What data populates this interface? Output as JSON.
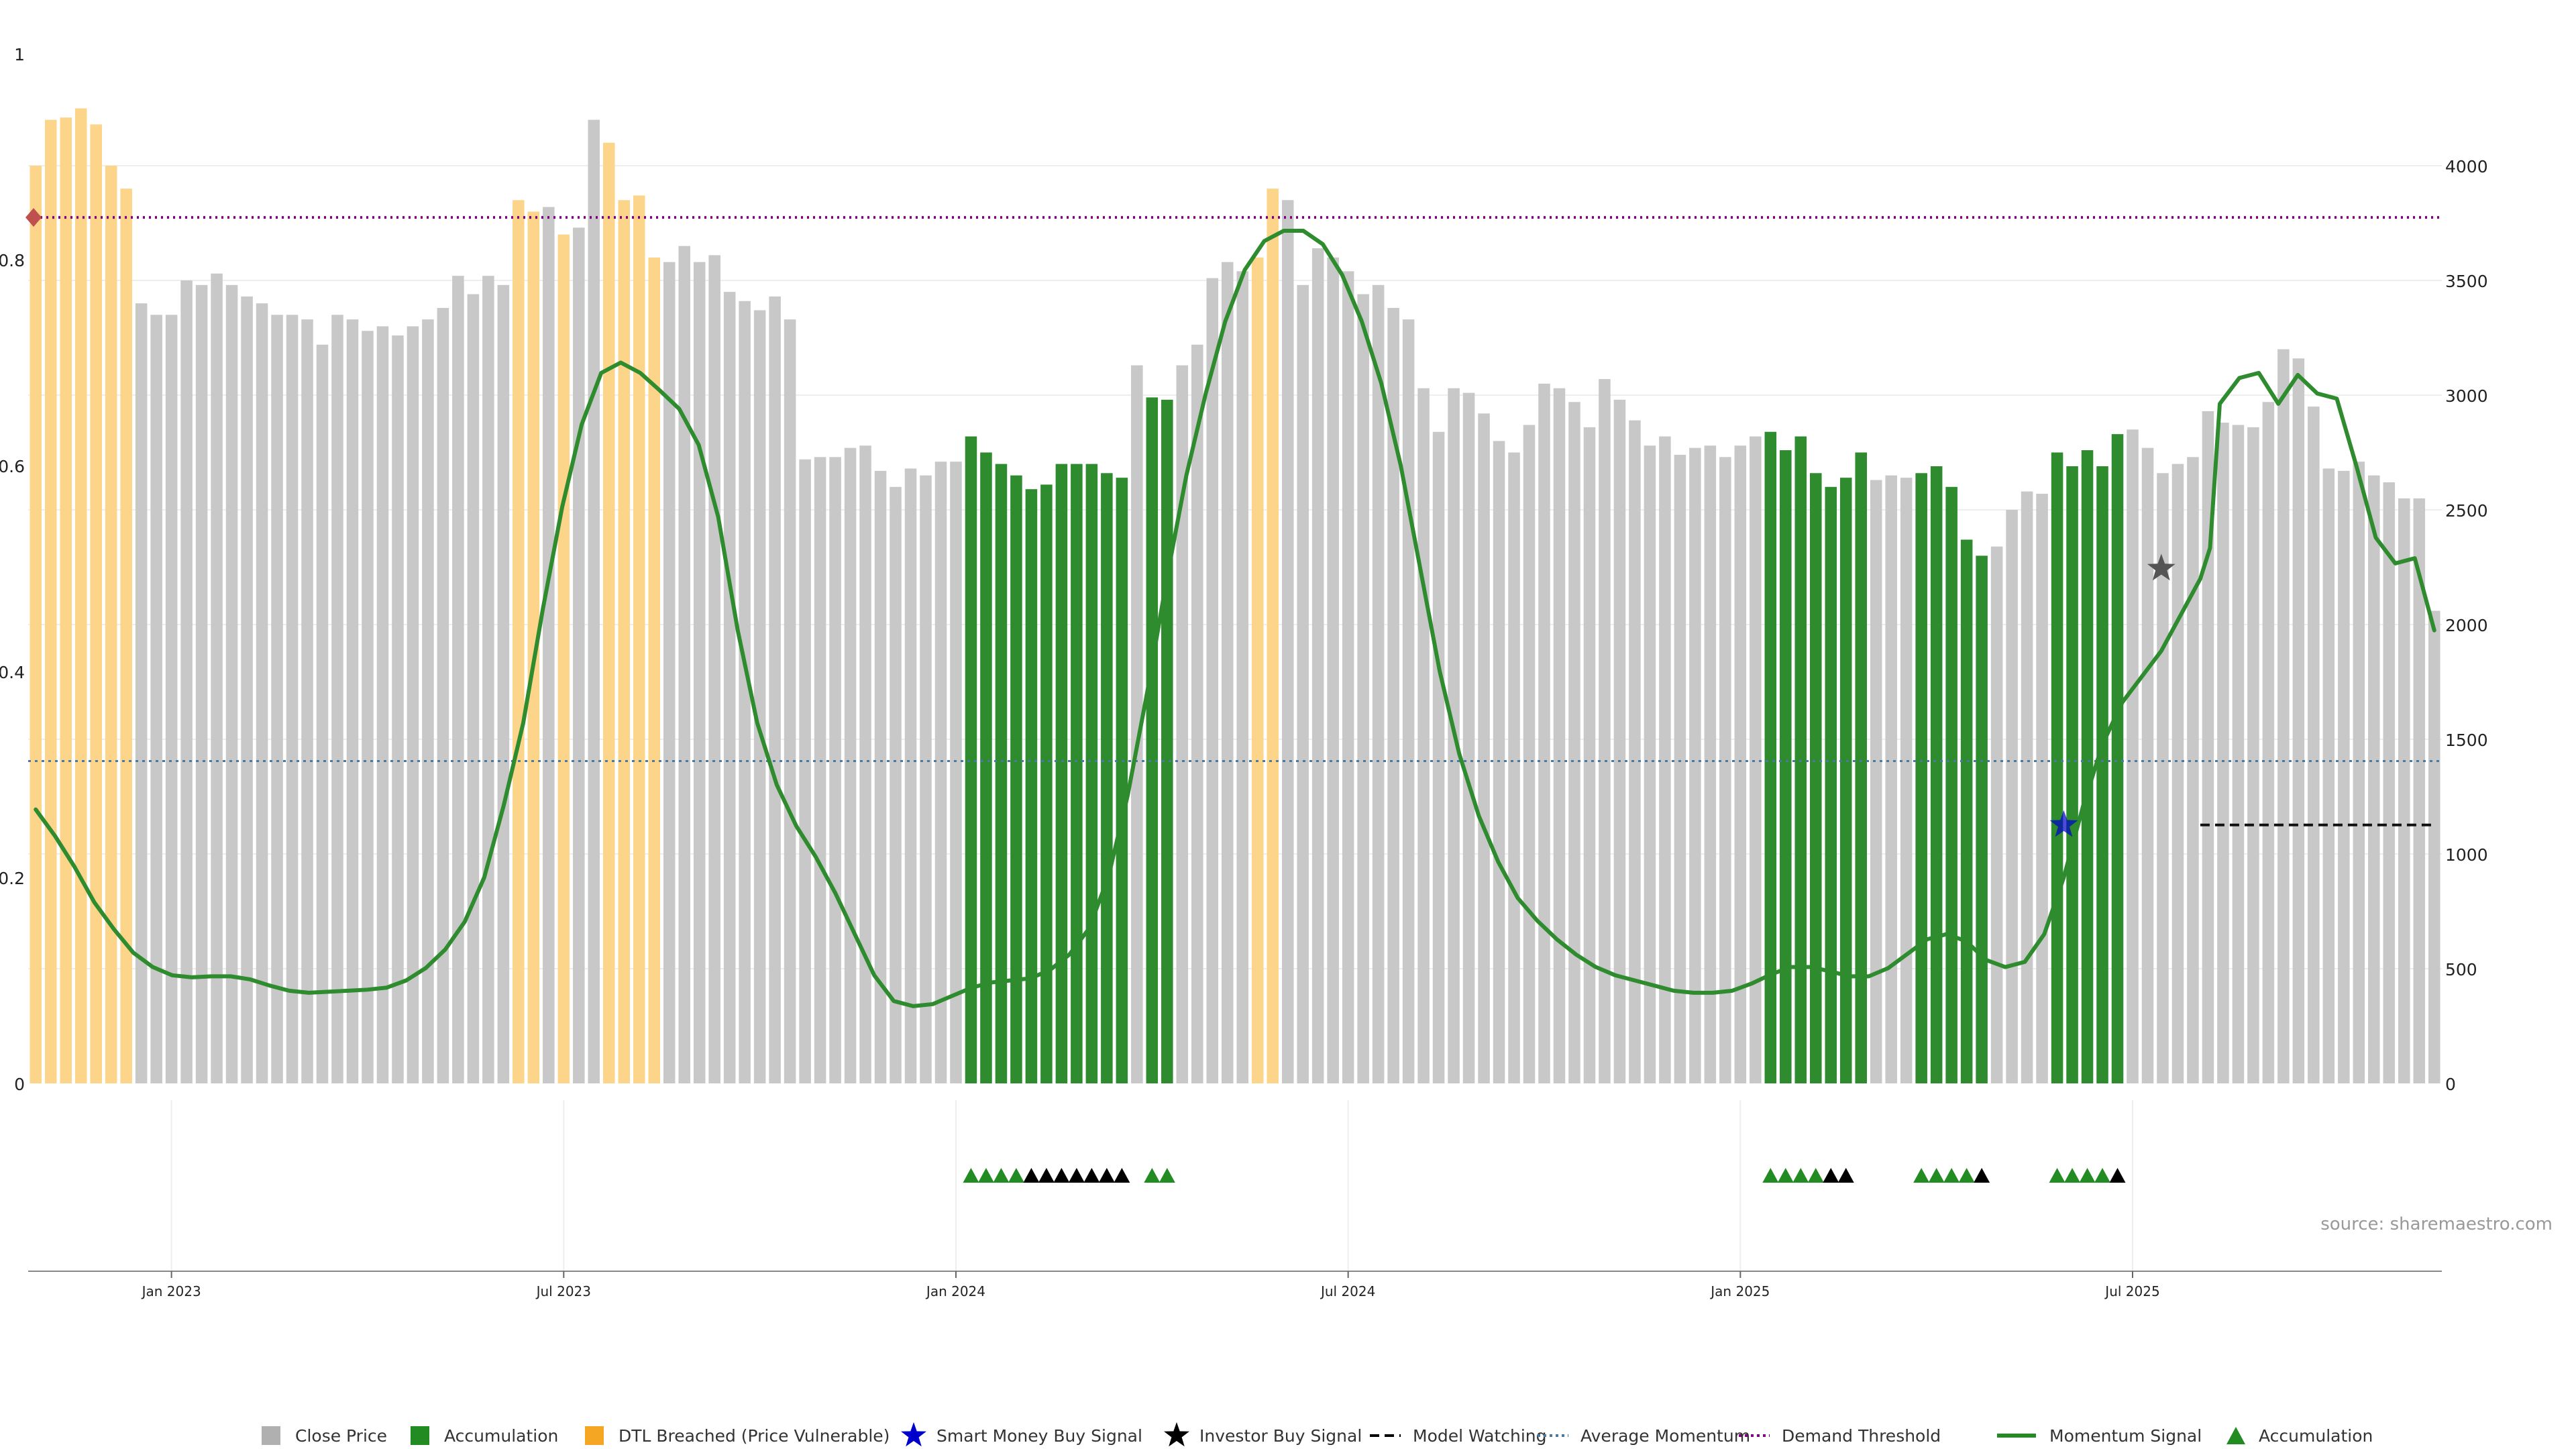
{
  "chart_data": {
    "type": "bar",
    "source": "source: sharemaestro.com",
    "left_axis": {
      "ticks": [
        "0",
        "0.2",
        "0.4",
        "0.6",
        "0.8",
        "1"
      ],
      "values": [
        0,
        0.2,
        0.4,
        0.6,
        0.8,
        1
      ]
    },
    "right_axis": {
      "ticks": [
        "0",
        "500",
        "1000",
        "1500",
        "2000",
        "2500",
        "3000",
        "3500",
        "4000"
      ],
      "values": [
        0,
        500,
        1000,
        1500,
        2000,
        2500,
        3000,
        3500,
        4000
      ]
    },
    "x_ticks": [
      "Jan 2023",
      "Jul 2023",
      "Jan 2024",
      "Jul 2024",
      "Jan 2025",
      "Jul 2025"
    ],
    "legend": [
      {
        "label": "Close Price",
        "kind": "square",
        "color": "#b0b0b0"
      },
      {
        "label": "Accumulation",
        "kind": "square",
        "color": "#228b22"
      },
      {
        "label": "DTL Breached (Price Vulnerable)",
        "kind": "square",
        "color": "#f5a623"
      },
      {
        "label": "Smart Money Buy Signal",
        "kind": "star",
        "color": "#0000cc"
      },
      {
        "label": "Investor Buy Signal",
        "kind": "star",
        "color": "#000000"
      },
      {
        "label": "Model Watching",
        "kind": "dash",
        "color": "#000000"
      },
      {
        "label": "Average Momentum",
        "kind": "dot",
        "color": "#4a7aa0"
      },
      {
        "label": "Demand Threshold",
        "kind": "dot",
        "color": "#800080"
      },
      {
        "label": "Momentum Signal",
        "kind": "line",
        "color": "#228b22"
      },
      {
        "label": "Accumulation",
        "kind": "triangle",
        "color": "#228b22"
      }
    ],
    "colors": {
      "close": "#c8c8c8",
      "accumulation": "#2e8b2e",
      "dtl": "#fcd58a",
      "momentum": "#2e8b2e",
      "demand": "#800080",
      "average": "#4a7aa0"
    },
    "demand_threshold": 0.841,
    "average_momentum": 0.313,
    "bars": {
      "close_prices": [
        4000,
        4200,
        4210,
        4250,
        4180,
        4000,
        3900,
        3400,
        3350,
        3350,
        3500,
        3480,
        3530,
        3480,
        3430,
        3400,
        3350,
        3350,
        3330,
        3220,
        3350,
        3330,
        3280,
        3300,
        3260,
        3300,
        3330,
        3380,
        3520,
        3440,
        3520,
        3480,
        3850,
        3800,
        3820,
        3700,
        3730,
        4200,
        4100,
        3850,
        3870,
        3600,
        3580,
        3650,
        3580,
        3610,
        3450,
        3410,
        3370,
        3430,
        3330,
        2720,
        2730,
        2730,
        2770,
        2780,
        2670,
        2600,
        2680,
        2650,
        2710,
        2710,
        2820,
        2750,
        2700,
        2650,
        2590,
        2610,
        2700,
        2700,
        2700,
        2660,
        2640,
        3130,
        2990,
        2980,
        3130,
        3220,
        3510,
        3580,
        3540,
        3600,
        3900,
        3850,
        3480,
        3640,
        3600,
        3540,
        3440,
        3480,
        3380,
        3330,
        3030,
        2840,
        3030,
        3010,
        2920,
        2800,
        2750,
        2870,
        3050,
        3030,
        2970,
        2860,
        3070,
        2980,
        2890,
        2780,
        2820,
        2740,
        2770,
        2780,
        2730,
        2780,
        2820,
        2840,
        2760,
        2820,
        2660,
        2600,
        2640,
        2750,
        2630,
        2650,
        2640,
        2660,
        2690,
        2600,
        2370,
        2300,
        2340,
        2500,
        2580,
        2570,
        2750,
        2690,
        2760,
        2690,
        2830,
        2850,
        2770,
        2660,
        2700,
        2730,
        2930,
        2880,
        2870,
        2860,
        2970,
        3200,
        3160,
        2950,
        2680,
        2670,
        2710,
        2650,
        2620,
        2550,
        2550,
        2060
      ],
      "accumulation": [
        62,
        63,
        64,
        65,
        66,
        67,
        68,
        69,
        70,
        71,
        72,
        74,
        75,
        115,
        116,
        117,
        118,
        119,
        120,
        121,
        125,
        126,
        127,
        128,
        129,
        134,
        135,
        136,
        137,
        138
      ],
      "dtl": [
        0,
        1,
        2,
        3,
        4,
        5,
        6,
        32,
        33,
        35,
        38,
        39,
        40,
        41,
        81,
        82
      ]
    },
    "momentum": [
      [
        0,
        0.266
      ],
      [
        2,
        0.24
      ],
      [
        4,
        0.21
      ],
      [
        6,
        0.176
      ],
      [
        8,
        0.15
      ],
      [
        10,
        0.127
      ],
      [
        12,
        0.113
      ],
      [
        14,
        0.105
      ],
      [
        16,
        0.103
      ],
      [
        18,
        0.104
      ],
      [
        20,
        0.104
      ],
      [
        22,
        0.101
      ],
      [
        24,
        0.095
      ],
      [
        26,
        0.09
      ],
      [
        28,
        0.088
      ],
      [
        30,
        0.089
      ],
      [
        32,
        0.09
      ],
      [
        34,
        0.091
      ],
      [
        36,
        0.093
      ],
      [
        38,
        0.1
      ],
      [
        40,
        0.112
      ],
      [
        42,
        0.13
      ],
      [
        44,
        0.157
      ],
      [
        46,
        0.2
      ],
      [
        48,
        0.27
      ],
      [
        50,
        0.35
      ],
      [
        52,
        0.46
      ],
      [
        54,
        0.56
      ],
      [
        56,
        0.64
      ],
      [
        58,
        0.69
      ],
      [
        60,
        0.7
      ],
      [
        62,
        0.69
      ],
      [
        64,
        0.673
      ],
      [
        66,
        0.655
      ],
      [
        68,
        0.62
      ],
      [
        70,
        0.55
      ],
      [
        72,
        0.44
      ],
      [
        74,
        0.35
      ],
      [
        76,
        0.29
      ],
      [
        78,
        0.25
      ],
      [
        80,
        0.22
      ],
      [
        82,
        0.185
      ],
      [
        84,
        0.145
      ],
      [
        86,
        0.105
      ],
      [
        88,
        0.08
      ],
      [
        90,
        0.075
      ],
      [
        92,
        0.077
      ],
      [
        94,
        0.085
      ],
      [
        96,
        0.093
      ],
      [
        98,
        0.098
      ],
      [
        100,
        0.1
      ],
      [
        102,
        0.102
      ],
      [
        104,
        0.11
      ],
      [
        106,
        0.125
      ],
      [
        108,
        0.15
      ],
      [
        110,
        0.2
      ],
      [
        112,
        0.28
      ],
      [
        114,
        0.38
      ],
      [
        116,
        0.49
      ],
      [
        118,
        0.59
      ],
      [
        120,
        0.67
      ],
      [
        122,
        0.74
      ],
      [
        124,
        0.79
      ],
      [
        126,
        0.818
      ],
      [
        128,
        0.828
      ],
      [
        130,
        0.828
      ],
      [
        132,
        0.815
      ],
      [
        134,
        0.785
      ],
      [
        136,
        0.74
      ],
      [
        138,
        0.68
      ],
      [
        140,
        0.6
      ],
      [
        142,
        0.5
      ],
      [
        144,
        0.4
      ],
      [
        146,
        0.32
      ],
      [
        148,
        0.26
      ],
      [
        150,
        0.215
      ],
      [
        152,
        0.18
      ],
      [
        154,
        0.158
      ],
      [
        156,
        0.14
      ],
      [
        158,
        0.125
      ],
      [
        160,
        0.113
      ],
      [
        162,
        0.105
      ],
      [
        164,
        0.1
      ],
      [
        166,
        0.095
      ],
      [
        168,
        0.09
      ],
      [
        170,
        0.088
      ],
      [
        172,
        0.088
      ],
      [
        174,
        0.09
      ],
      [
        176,
        0.097
      ],
      [
        178,
        0.106
      ],
      [
        180,
        0.113
      ],
      [
        182,
        0.113
      ],
      [
        184,
        0.109
      ],
      [
        186,
        0.104
      ],
      [
        188,
        0.104
      ],
      [
        190,
        0.112
      ],
      [
        192,
        0.126
      ],
      [
        194,
        0.14
      ],
      [
        196,
        0.145
      ],
      [
        198,
        0.138
      ],
      [
        200,
        0.12
      ],
      [
        202,
        0.113
      ],
      [
        204,
        0.118
      ],
      [
        206,
        0.145
      ],
      [
        208,
        0.2
      ],
      [
        210,
        0.27
      ],
      [
        212,
        0.33
      ],
      [
        214,
        0.37
      ],
      [
        216,
        0.395
      ],
      [
        218,
        0.42
      ],
      [
        220,
        0.455
      ],
      [
        222,
        0.49
      ],
      [
        223,
        0.52
      ],
      [
        224,
        0.66
      ],
      [
        226,
        0.685
      ],
      [
        228,
        0.69
      ],
      [
        230,
        0.66
      ],
      [
        232,
        0.688
      ],
      [
        234,
        0.67
      ],
      [
        236,
        0.665
      ],
      [
        238,
        0.6
      ],
      [
        240,
        0.53
      ],
      [
        242,
        0.505
      ],
      [
        244,
        0.51
      ],
      [
        246,
        0.44
      ]
    ],
    "model_watching": {
      "from": 222,
      "to": 246,
      "level": 0.251
    },
    "markers": {
      "demand_diamond": {
        "x": 0.3,
        "y": 0.841,
        "color": "#c0504d"
      },
      "smart_money_star": {
        "x": 208,
        "y": 0.251,
        "color": "#0000cc"
      },
      "investor_star": {
        "x": 218,
        "y": 0.5,
        "color": "#555555"
      }
    },
    "signal_triangles": {
      "green": [
        62,
        63,
        64,
        65,
        74,
        75,
        115,
        116,
        117,
        118,
        125,
        126,
        127,
        128,
        134,
        135,
        136,
        137
      ],
      "black": [
        66,
        67,
        68,
        69,
        70,
        71,
        72,
        119,
        120,
        129,
        138
      ]
    }
  }
}
